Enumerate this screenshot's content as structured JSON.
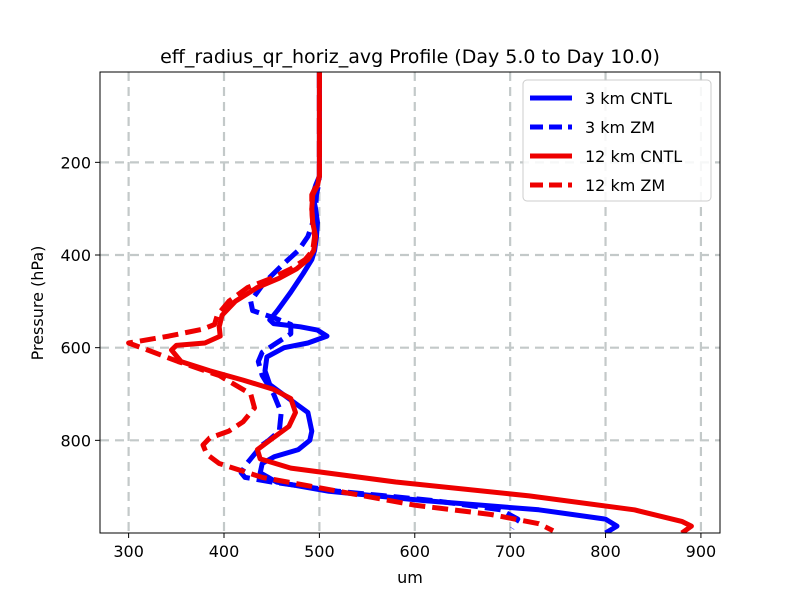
{
  "chart_data": {
    "type": "line",
    "title": "eff_radius_qr_horiz_avg Profile (Day 5.0 to Day 10.0)",
    "xlabel": "um",
    "ylabel": "Pressure (hPa)",
    "xlim": [
      270,
      920
    ],
    "ylim": [
      1000,
      5
    ],
    "y_inverted": true,
    "grid": true,
    "legend_position": "upper right",
    "xticks": [
      300,
      400,
      500,
      600,
      700,
      800,
      900
    ],
    "yticks": [
      200,
      400,
      600,
      800
    ],
    "series": [
      {
        "name": "3 km CNTL",
        "color": "#0000ff",
        "style": "solid",
        "x": [
          500,
          500,
          500,
          500,
          496,
          493,
          496,
          498,
          497,
          495,
          492,
          483,
          470,
          456,
          448,
          452,
          480,
          498,
          508,
          488,
          463,
          445,
          443,
          448,
          468,
          488,
          492,
          490,
          478,
          453,
          440,
          438,
          455,
          510,
          610,
          730,
          800,
          812,
          800
        ],
        "y": [
          5,
          60,
          150,
          230,
          250,
          270,
          300,
          330,
          360,
          390,
          410,
          440,
          480,
          520,
          540,
          548,
          555,
          562,
          575,
          590,
          600,
          620,
          650,
          680,
          710,
          740,
          780,
          800,
          820,
          835,
          850,
          870,
          890,
          910,
          930,
          950,
          970,
          985,
          1000
        ]
      },
      {
        "name": "3 km ZM",
        "color": "#0000ff",
        "style": "dashed",
        "x": [
          500,
          500,
          500,
          500,
          499,
          497,
          496,
          493,
          488,
          478,
          462,
          442,
          428,
          430,
          452,
          470,
          470,
          455,
          440,
          436,
          440,
          452,
          460,
          458,
          447,
          440,
          432,
          424,
          418,
          422,
          450,
          520,
          620,
          690,
          708,
          702
        ],
        "y": [
          5,
          60,
          150,
          230,
          250,
          270,
          300,
          330,
          360,
          390,
          420,
          460,
          500,
          520,
          535,
          550,
          570,
          590,
          610,
          630,
          660,
          700,
          740,
          780,
          800,
          810,
          830,
          850,
          870,
          880,
          890,
          910,
          930,
          950,
          970,
          990
        ]
      },
      {
        "name": "12 km CNTL",
        "color": "#ee0000",
        "style": "solid",
        "x": [
          500,
          500,
          500,
          500,
          498,
          493,
          492,
          493,
          496,
          494,
          488,
          476,
          458,
          435,
          412,
          398,
          395,
          396,
          380,
          350,
          345,
          355,
          385,
          420,
          452,
          470,
          475,
          468,
          448,
          435,
          438,
          470,
          580,
          720,
          830,
          880,
          890,
          880
        ],
        "y": [
          5,
          60,
          150,
          230,
          250,
          270,
          300,
          330,
          360,
          390,
          410,
          430,
          450,
          470,
          500,
          530,
          555,
          575,
          590,
          595,
          605,
          630,
          650,
          670,
          690,
          710,
          740,
          770,
          800,
          820,
          840,
          860,
          890,
          920,
          950,
          975,
          985,
          1000
        ]
      },
      {
        "name": "12 km ZM",
        "color": "#ee0000",
        "style": "dashed",
        "x": [
          500,
          500,
          500,
          500,
          497,
          492,
          492,
          493,
          495,
          493,
          485,
          470,
          450,
          425,
          405,
          393,
          390,
          378,
          342,
          300,
          320,
          352,
          395,
          428,
          432,
          420,
          405,
          385,
          378,
          382,
          395,
          440,
          520,
          600,
          680,
          730,
          745
        ],
        "y": [
          5,
          60,
          150,
          230,
          250,
          270,
          300,
          330,
          360,
          390,
          410,
          430,
          450,
          470,
          500,
          530,
          550,
          560,
          575,
          590,
          605,
          630,
          660,
          700,
          730,
          760,
          780,
          795,
          810,
          830,
          850,
          880,
          910,
          940,
          960,
          980,
          995
        ]
      }
    ]
  }
}
